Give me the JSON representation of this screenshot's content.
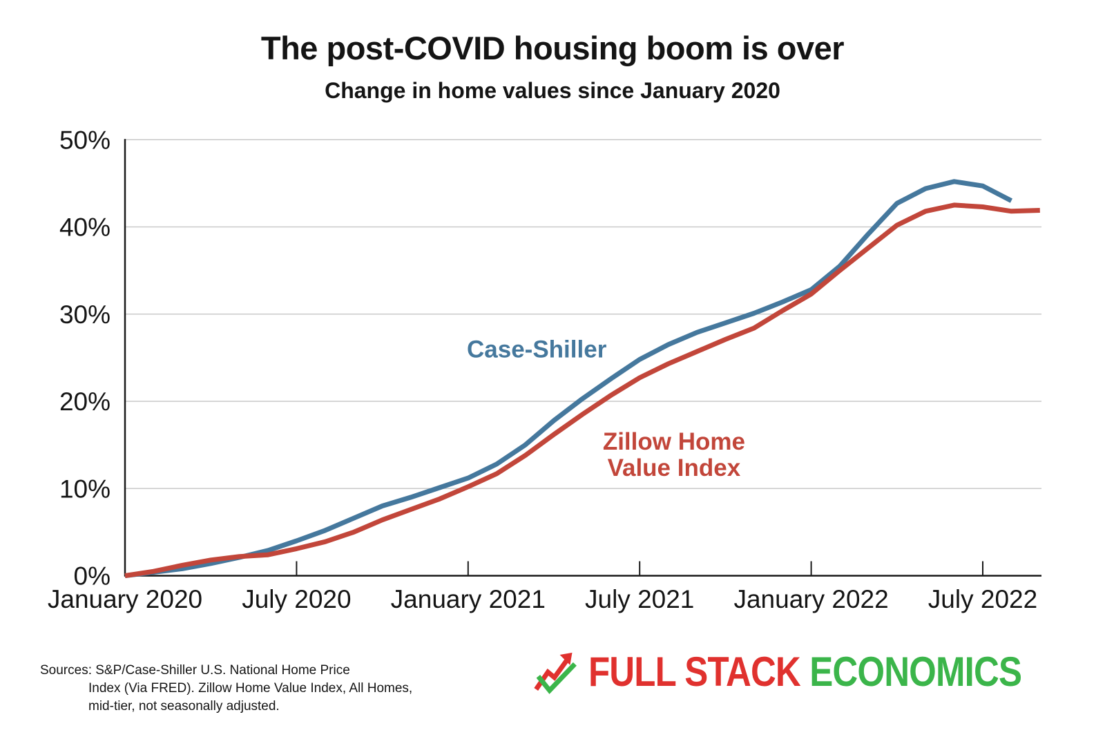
{
  "title": "The post-COVID housing boom is over",
  "subtitle": "Change in home values since January 2020",
  "footer": {
    "line1": "Sources: S&P/Case-Shiller U.S. National Home Price",
    "line2": "Index (Via FRED). Zillow Home Value Index, All Homes,",
    "line3": "mid-tier, not seasonally adjusted."
  },
  "logo": {
    "part1": "FULL STACK",
    "part2": "ECONOMICS",
    "red": "#e0312e",
    "green": "#3bb54a"
  },
  "chart_data": {
    "type": "line",
    "title": "The post-COVID housing boom is over",
    "subtitle": "Change in home values since January 2020",
    "xlabel": "",
    "ylabel": "Change in home values since January 2020 (%)",
    "ylim": [
      0,
      50
    ],
    "x_unit": "months since January 2020",
    "xlim_months": [
      0,
      32
    ],
    "grid": "horizontal",
    "grid_color": "#c9c9c9",
    "axis_color": "#1a1a1a",
    "text_color": "#141414",
    "y_ticks": [
      {
        "label": "0%",
        "value": 0
      },
      {
        "label": "10%",
        "value": 10
      },
      {
        "label": "20%",
        "value": 20
      },
      {
        "label": "30%",
        "value": 30
      },
      {
        "label": "40%",
        "value": 40
      },
      {
        "label": "50%",
        "value": 50
      }
    ],
    "x_ticks": [
      {
        "label": "January 2020",
        "month": 0,
        "tick": false
      },
      {
        "label": "July 2020",
        "month": 6,
        "tick": true
      },
      {
        "label": "January 2021",
        "month": 12,
        "tick": true
      },
      {
        "label": "July 2021",
        "month": 18,
        "tick": true
      },
      {
        "label": "January 2022",
        "month": 24,
        "tick": true
      },
      {
        "label": "July 2022",
        "month": 30,
        "tick": true
      }
    ],
    "series": [
      {
        "name": "Case-Shiller",
        "color": "#45789d",
        "start_month": 0,
        "months": [
          "Jan 2020",
          "Feb 2020",
          "Mar 2020",
          "Apr 2020",
          "May 2020",
          "Jun 2020",
          "Jul 2020",
          "Aug 2020",
          "Sep 2020",
          "Oct 2020",
          "Nov 2020",
          "Dec 2020",
          "Jan 2021",
          "Feb 2021",
          "Mar 2021",
          "Apr 2021",
          "May 2021",
          "Jun 2021",
          "Jul 2021",
          "Aug 2021",
          "Sep 2021",
          "Oct 2021",
          "Nov 2021",
          "Dec 2021",
          "Jan 2022",
          "Feb 2022",
          "Mar 2022",
          "Apr 2022",
          "May 2022",
          "Jun 2022",
          "Jul 2022",
          "Aug 2022"
        ],
        "values": [
          0,
          0.4,
          0.8,
          1.4,
          2.1,
          2.9,
          4.0,
          5.2,
          6.6,
          8.0,
          9.0,
          10.1,
          11.2,
          12.8,
          15.0,
          17.8,
          20.3,
          22.6,
          24.8,
          26.5,
          27.9,
          29.0,
          30.1,
          31.4,
          32.8,
          35.5,
          39.2,
          42.7,
          44.4,
          45.2,
          44.7,
          43.0
        ],
        "label": {
          "lines": [
            "Case-Shiller"
          ],
          "x_month": 14.4,
          "y_pct": 26.0,
          "line_gap_pct": 3.0
        }
      },
      {
        "name": "Zillow Home Value Index",
        "color": "#c2463a",
        "start_month": 0,
        "months": [
          "Jan 2020",
          "Feb 2020",
          "Mar 2020",
          "Apr 2020",
          "May 2020",
          "Jun 2020",
          "Jul 2020",
          "Aug 2020",
          "Sep 2020",
          "Oct 2020",
          "Nov 2020",
          "Dec 2020",
          "Jan 2021",
          "Feb 2021",
          "Mar 2021",
          "Apr 2021",
          "May 2021",
          "Jun 2021",
          "Jul 2021",
          "Aug 2021",
          "Sep 2021",
          "Oct 2021",
          "Nov 2021",
          "Dec 2021",
          "Jan 2022",
          "Feb 2022",
          "Mar 2022",
          "Apr 2022",
          "May 2022",
          "Jun 2022",
          "Jul 2022",
          "Aug 2022",
          "Sep 2022"
        ],
        "values": [
          0,
          0.5,
          1.2,
          1.8,
          2.2,
          2.4,
          3.1,
          3.9,
          5.0,
          6.4,
          7.6,
          8.8,
          10.2,
          11.7,
          13.8,
          16.2,
          18.5,
          20.7,
          22.7,
          24.3,
          25.7,
          27.1,
          28.4,
          30.4,
          32.3,
          35.0,
          37.6,
          40.2,
          41.8,
          42.5,
          42.3,
          41.8,
          41.9
        ],
        "label": {
          "lines": [
            "Zillow Home",
            "Value Index"
          ],
          "x_month": 19.2,
          "y_pct": 15.4,
          "line_gap_pct": 3.0
        }
      }
    ],
    "legend_position": "inline-annotations"
  }
}
